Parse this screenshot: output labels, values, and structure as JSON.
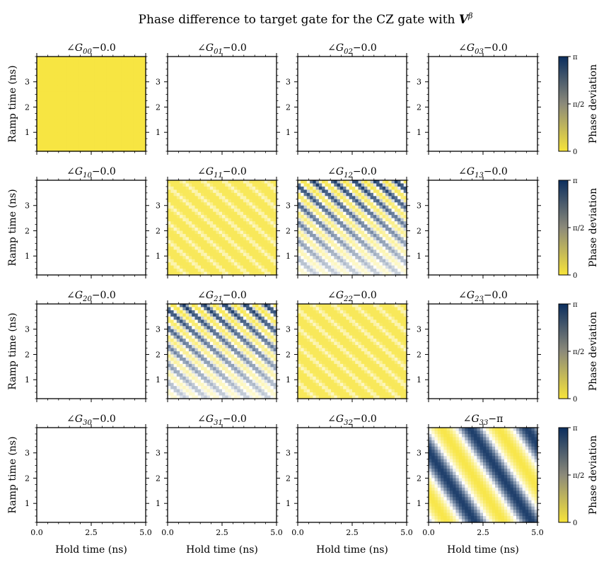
{
  "chart_data": {
    "type": "heatmap",
    "title": "Phase difference to target gate for the CZ gate with V^β",
    "title_main": "Phase difference to target gate for the CZ gate with ",
    "title_symbol": "V",
    "title_superscript": "β",
    "xlabel": "Hold time (ns)",
    "ylabel": "Ramp time (ns)",
    "xlim": [
      0,
      5
    ],
    "ylim": [
      0.25,
      4
    ],
    "xticks": [
      0.0,
      2.5,
      5.0
    ],
    "xtick_labels": [
      "0.0",
      "2.5",
      "5.0"
    ],
    "yticks": [
      1,
      2,
      3
    ],
    "ytick_labels": [
      "1",
      "2",
      "3"
    ],
    "colorbar": {
      "label": "Phase deviation",
      "range": [
        0,
        3.14159
      ],
      "tick_labels": [
        "0",
        "π/2",
        "π"
      ],
      "colors": [
        "#f7e43a",
        "#ffffff",
        "#0b2e5e"
      ]
    },
    "panels": [
      {
        "title": "∠G00−0.0",
        "sub": "00",
        "offset": "−0.0",
        "pattern": "uniform",
        "level": 0.02
      },
      {
        "title": "∠G01−0.0",
        "sub": "01",
        "offset": "−0.0",
        "pattern": "empty"
      },
      {
        "title": "∠G02−0.0",
        "sub": "02",
        "offset": "−0.0",
        "pattern": "empty"
      },
      {
        "title": "∠G03−0.0",
        "sub": "03",
        "offset": "−0.0",
        "pattern": "empty"
      },
      {
        "title": "∠G10−0.0",
        "sub": "10",
        "offset": "−0.0",
        "pattern": "empty"
      },
      {
        "title": "∠G11−0.0",
        "sub": "11",
        "offset": "−0.0",
        "pattern": "stripes-low"
      },
      {
        "title": "∠G12−0.0",
        "sub": "12",
        "offset": "−0.0",
        "pattern": "stripes-high"
      },
      {
        "title": "∠G13−0.0",
        "sub": "13",
        "offset": "−0.0",
        "pattern": "empty"
      },
      {
        "title": "∠G20−0.0",
        "sub": "20",
        "offset": "−0.0",
        "pattern": "empty"
      },
      {
        "title": "∠G21−0.0",
        "sub": "21",
        "offset": "−0.0",
        "pattern": "stripes-high"
      },
      {
        "title": "∠G22−0.0",
        "sub": "22",
        "offset": "−0.0",
        "pattern": "stripes-low"
      },
      {
        "title": "∠G23−0.0",
        "sub": "23",
        "offset": "−0.0",
        "pattern": "empty"
      },
      {
        "title": "∠G30−0.0",
        "sub": "30",
        "offset": "−0.0",
        "pattern": "empty"
      },
      {
        "title": "∠G31−0.0",
        "sub": "31",
        "offset": "−0.0",
        "pattern": "empty"
      },
      {
        "title": "∠G32−0.0",
        "sub": "32",
        "offset": "−0.0",
        "pattern": "empty"
      },
      {
        "title": "∠G33−π",
        "sub": "33",
        "offset": "−π",
        "pattern": "waves"
      }
    ]
  }
}
